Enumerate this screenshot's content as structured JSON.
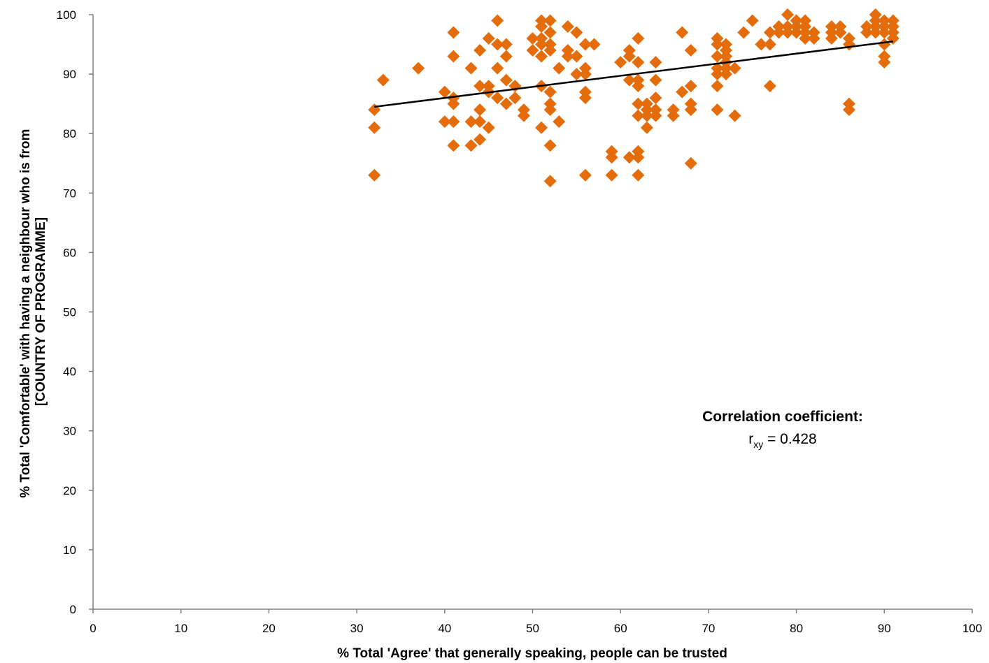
{
  "chart_data": {
    "type": "scatter",
    "title": "",
    "xlabel": "% Total 'Agree' that generally speaking, people can be trusted",
    "ylabel_lines": [
      "% Total 'Comfortable' with having a neighbour who is from",
      "[COUNTRY  OF PROGRAMME]"
    ],
    "xlim": [
      0,
      100
    ],
    "ylim": [
      0,
      100
    ],
    "xticks": [
      0,
      10,
      20,
      30,
      40,
      50,
      60,
      70,
      80,
      90,
      100
    ],
    "yticks": [
      0,
      10,
      20,
      30,
      40,
      50,
      60,
      70,
      80,
      90,
      100
    ],
    "grid": false,
    "marker_color": "#E46C0A",
    "trendline_color": "#000000",
    "trendline": {
      "x": [
        32,
        91
      ],
      "y": [
        84.5,
        95.5
      ]
    },
    "annotation": {
      "title": "Correlation coefficient:",
      "r_main": "r",
      "r_sub": "xy",
      "r_value": " = 0.428"
    },
    "points": [
      [
        32,
        84
      ],
      [
        32,
        81
      ],
      [
        32,
        73
      ],
      [
        33,
        89
      ],
      [
        37,
        91
      ],
      [
        40,
        87
      ],
      [
        40,
        82
      ],
      [
        41,
        97
      ],
      [
        41,
        93
      ],
      [
        41,
        86
      ],
      [
        41,
        85
      ],
      [
        41,
        82
      ],
      [
        41,
        78
      ],
      [
        43,
        91
      ],
      [
        43,
        82
      ],
      [
        43,
        78
      ],
      [
        44,
        94
      ],
      [
        44,
        88
      ],
      [
        44,
        84
      ],
      [
        44,
        82
      ],
      [
        44,
        79
      ],
      [
        45,
        96
      ],
      [
        45,
        88
      ],
      [
        45,
        87
      ],
      [
        45,
        81
      ],
      [
        46,
        99
      ],
      [
        46,
        95
      ],
      [
        46,
        91
      ],
      [
        46,
        86
      ],
      [
        47,
        95
      ],
      [
        47,
        93
      ],
      [
        47,
        89
      ],
      [
        47,
        85
      ],
      [
        48,
        88
      ],
      [
        48,
        86
      ],
      [
        49,
        84
      ],
      [
        49,
        83
      ],
      [
        50,
        96
      ],
      [
        50,
        94
      ],
      [
        51,
        99
      ],
      [
        51,
        98
      ],
      [
        51,
        96
      ],
      [
        51,
        95
      ],
      [
        51,
        93
      ],
      [
        51,
        88
      ],
      [
        51,
        81
      ],
      [
        52,
        99
      ],
      [
        52,
        97
      ],
      [
        52,
        95
      ],
      [
        52,
        94
      ],
      [
        52,
        87
      ],
      [
        52,
        85
      ],
      [
        52,
        84
      ],
      [
        52,
        78
      ],
      [
        52,
        72
      ],
      [
        53,
        91
      ],
      [
        53,
        82
      ],
      [
        54,
        98
      ],
      [
        54,
        94
      ],
      [
        54,
        93
      ],
      [
        55,
        97
      ],
      [
        55,
        93
      ],
      [
        55,
        90
      ],
      [
        56,
        95
      ],
      [
        56,
        91
      ],
      [
        56,
        90
      ],
      [
        56,
        87
      ],
      [
        56,
        86
      ],
      [
        56,
        73
      ],
      [
        57,
        95
      ],
      [
        59,
        77
      ],
      [
        59,
        76
      ],
      [
        59,
        73
      ],
      [
        60,
        92
      ],
      [
        61,
        94
      ],
      [
        61,
        93
      ],
      [
        61,
        89
      ],
      [
        61,
        76
      ],
      [
        62,
        96
      ],
      [
        62,
        92
      ],
      [
        62,
        89
      ],
      [
        62,
        88
      ],
      [
        62,
        85
      ],
      [
        62,
        83
      ],
      [
        62,
        77
      ],
      [
        62,
        76
      ],
      [
        62,
        73
      ],
      [
        63,
        85
      ],
      [
        63,
        84
      ],
      [
        63,
        83
      ],
      [
        63,
        81
      ],
      [
        64,
        92
      ],
      [
        64,
        89
      ],
      [
        64,
        86
      ],
      [
        64,
        84
      ],
      [
        64,
        83
      ],
      [
        66,
        84
      ],
      [
        66,
        83
      ],
      [
        67,
        97
      ],
      [
        67,
        87
      ],
      [
        68,
        94
      ],
      [
        68,
        88
      ],
      [
        68,
        85
      ],
      [
        68,
        84
      ],
      [
        68,
        75
      ],
      [
        71,
        96
      ],
      [
        71,
        95
      ],
      [
        71,
        93
      ],
      [
        71,
        91
      ],
      [
        71,
        90
      ],
      [
        71,
        88
      ],
      [
        71,
        84
      ],
      [
        72,
        95
      ],
      [
        72,
        94
      ],
      [
        72,
        93
      ],
      [
        72,
        92
      ],
      [
        72,
        91
      ],
      [
        72,
        90
      ],
      [
        73,
        91
      ],
      [
        73,
        83
      ],
      [
        74,
        97
      ],
      [
        75,
        99
      ],
      [
        76,
        95
      ],
      [
        77,
        97
      ],
      [
        77,
        95
      ],
      [
        77,
        88
      ],
      [
        78,
        98
      ],
      [
        78,
        97
      ],
      [
        79,
        100
      ],
      [
        79,
        98
      ],
      [
        79,
        97
      ],
      [
        80,
        99
      ],
      [
        80,
        98
      ],
      [
        80,
        97
      ],
      [
        81,
        99
      ],
      [
        81,
        98
      ],
      [
        81,
        97
      ],
      [
        81,
        96
      ],
      [
        82,
        97
      ],
      [
        82,
        96
      ],
      [
        84,
        98
      ],
      [
        84,
        97
      ],
      [
        84,
        96
      ],
      [
        85,
        98
      ],
      [
        85,
        97
      ],
      [
        86,
        96
      ],
      [
        86,
        95
      ],
      [
        86,
        85
      ],
      [
        86,
        84
      ],
      [
        88,
        98
      ],
      [
        88,
        97
      ],
      [
        89,
        100
      ],
      [
        89,
        99
      ],
      [
        89,
        98
      ],
      [
        89,
        97
      ],
      [
        90,
        99
      ],
      [
        90,
        98
      ],
      [
        90,
        97
      ],
      [
        90,
        95
      ],
      [
        90,
        93
      ],
      [
        90,
        92
      ],
      [
        91,
        99
      ],
      [
        91,
        98
      ],
      [
        91,
        97
      ],
      [
        91,
        96
      ]
    ]
  }
}
